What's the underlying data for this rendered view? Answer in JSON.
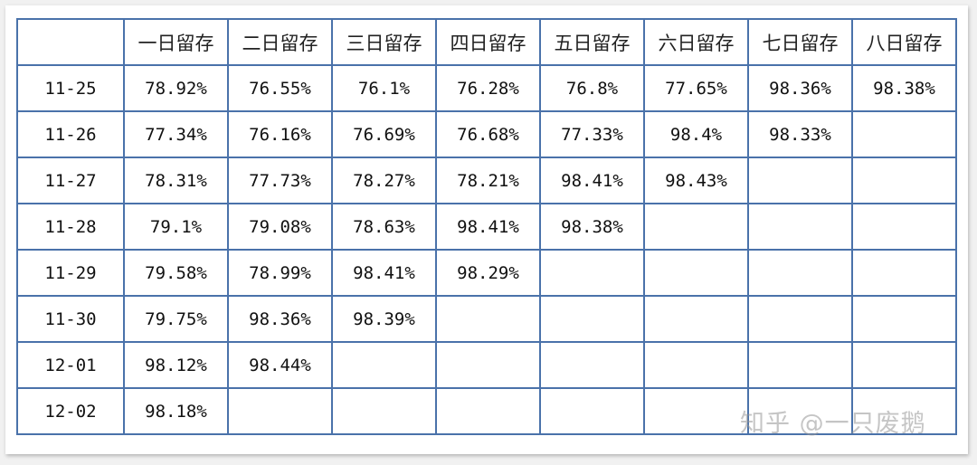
{
  "table": {
    "corner": "",
    "headers": [
      "一日留存",
      "二日留存",
      "三日留存",
      "四日留存",
      "五日留存",
      "六日留存",
      "七日留存",
      "八日留存"
    ],
    "rows": [
      {
        "date": "11-25",
        "cells": [
          "78.92%",
          "76.55%",
          "76.1%",
          "76.28%",
          "76.8%",
          "77.65%",
          "98.36%",
          "98.38%"
        ]
      },
      {
        "date": "11-26",
        "cells": [
          "77.34%",
          "76.16%",
          "76.69%",
          "76.68%",
          "77.33%",
          "98.4%",
          "98.33%",
          ""
        ]
      },
      {
        "date": "11-27",
        "cells": [
          "78.31%",
          "77.73%",
          "78.27%",
          "78.21%",
          "98.41%",
          "98.43%",
          "",
          ""
        ]
      },
      {
        "date": "11-28",
        "cells": [
          "79.1%",
          "79.08%",
          "78.63%",
          "98.41%",
          "98.38%",
          "",
          "",
          ""
        ]
      },
      {
        "date": "11-29",
        "cells": [
          "79.58%",
          "78.99%",
          "98.41%",
          "98.29%",
          "",
          "",
          "",
          ""
        ]
      },
      {
        "date": "11-30",
        "cells": [
          "79.75%",
          "98.36%",
          "98.39%",
          "",
          "",
          "",
          "",
          ""
        ]
      },
      {
        "date": "12-01",
        "cells": [
          "98.12%",
          "98.44%",
          "",
          "",
          "",
          "",
          "",
          ""
        ]
      },
      {
        "date": "12-02",
        "cells": [
          "98.18%",
          "",
          "",
          "",
          "",
          "",
          "",
          ""
        ]
      }
    ]
  },
  "watermark": "知乎 @一只废鹅",
  "colors": {
    "border": "#4a72aa",
    "text": "#111111",
    "background": "#ffffff"
  }
}
